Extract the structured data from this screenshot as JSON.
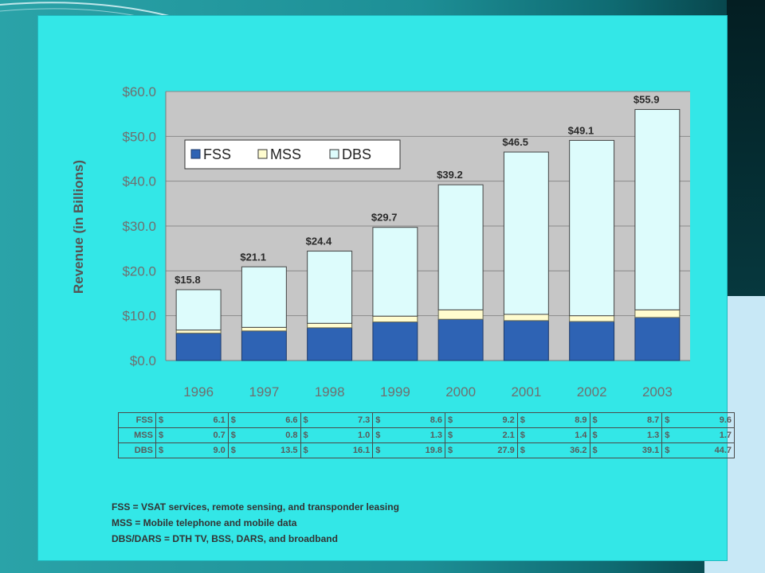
{
  "chart_data": {
    "type": "bar",
    "stacked": true,
    "categories": [
      "1996",
      "1997",
      "1998",
      "1999",
      "2000",
      "2001",
      "2002",
      "2003"
    ],
    "series": [
      {
        "name": "FSS",
        "values": [
          6.1,
          6.6,
          7.3,
          8.6,
          9.2,
          8.9,
          8.7,
          9.6
        ]
      },
      {
        "name": "MSS",
        "values": [
          0.7,
          0.8,
          1.0,
          1.3,
          2.1,
          1.4,
          1.3,
          1.7
        ]
      },
      {
        "name": "DBS",
        "values": [
          9.0,
          13.5,
          16.1,
          19.8,
          27.9,
          36.2,
          39.1,
          44.7
        ]
      }
    ],
    "totals": [
      "$15.8",
      "$21.1",
      "$24.4",
      "$29.7",
      "$39.2",
      "$46.5",
      "$49.1",
      "$55.9"
    ],
    "ylabel": "Revenue (in Billions)",
    "xlabel": "",
    "ylim": [
      0,
      60
    ],
    "yticks": [
      "$0.0",
      "$10.0",
      "$20.0",
      "$30.0",
      "$40.0",
      "$50.0",
      "$60.0"
    ],
    "grid": true,
    "legend": "top-left",
    "colors": {
      "FSS": "#2e63b4",
      "MSS": "#fffccf",
      "DBS": "#ddfcfc",
      "plot_bg": "#c6c6c6",
      "card_bg": "#33e7e7"
    }
  },
  "table": {
    "currency": "$",
    "rows": [
      {
        "label": "FSS",
        "values": [
          "6.1",
          "6.6",
          "7.3",
          "8.6",
          "9.2",
          "8.9",
          "8.7",
          "9.6"
        ]
      },
      {
        "label": "MSS",
        "values": [
          "0.7",
          "0.8",
          "1.0",
          "1.3",
          "2.1",
          "1.4",
          "1.3",
          "1.7"
        ]
      },
      {
        "label": "DBS",
        "values": [
          "9.0",
          "13.5",
          "16.1",
          "19.8",
          "27.9",
          "36.2",
          "39.1",
          "44.7"
        ]
      }
    ]
  },
  "footnotes": [
    "FSS = VSAT services, remote sensing, and transponder leasing",
    "MSS = Mobile telephone and mobile data",
    "DBS/DARS = DTH TV, BSS, DARS, and broadband"
  ]
}
